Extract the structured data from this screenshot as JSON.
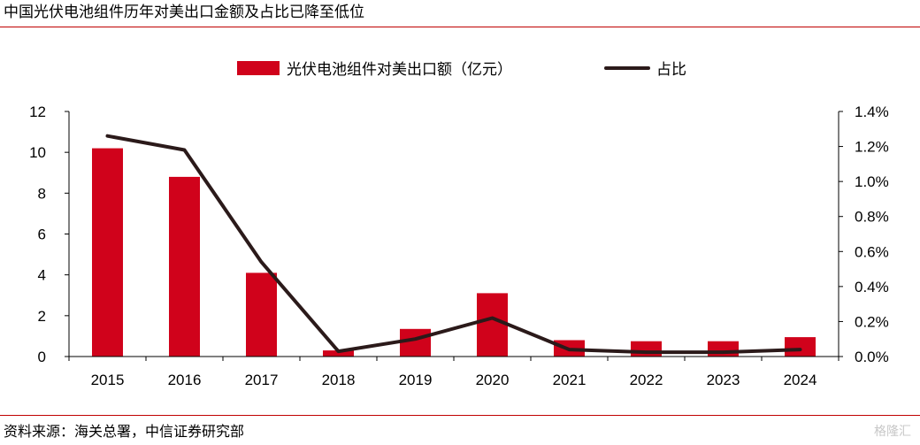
{
  "header": {
    "title": "中国光伏电池组件历年对美出口金额及占比已降至低位"
  },
  "footer": {
    "source": "资料来源：海关总署，中信证券研究部",
    "watermark": "格隆汇"
  },
  "chart_data": {
    "type": "bar",
    "title": "中国光伏电池组件历年对美出口金额及占比已降至低位",
    "categories": [
      "2015",
      "2016",
      "2017",
      "2018",
      "2019",
      "2020",
      "2021",
      "2022",
      "2023",
      "2024"
    ],
    "series": [
      {
        "name": "光伏电池组件对美出口额（亿元）",
        "type": "bar",
        "axis": "left",
        "color": "#d0021b",
        "values": [
          10.2,
          8.8,
          4.1,
          0.3,
          1.35,
          3.1,
          0.8,
          0.75,
          0.75,
          0.95
        ]
      },
      {
        "name": "占比",
        "type": "line",
        "axis": "right",
        "color": "#2b1a1a",
        "values": [
          1.26,
          1.18,
          0.54,
          0.03,
          0.1,
          0.22,
          0.04,
          0.025,
          0.025,
          0.04
        ]
      }
    ],
    "y_left": {
      "min": 0,
      "max": 12,
      "ticks": [
        "0",
        "2",
        "4",
        "6",
        "8",
        "10",
        "12"
      ],
      "tick_values": [
        0,
        2,
        4,
        6,
        8,
        10,
        12
      ]
    },
    "y_right": {
      "min": 0,
      "max": 1.4,
      "unit": "%",
      "ticks": [
        "0.0%",
        "0.2%",
        "0.4%",
        "0.6%",
        "0.8%",
        "1.0%",
        "1.2%",
        "1.4%"
      ],
      "tick_values": [
        0,
        0.2,
        0.4,
        0.6,
        0.8,
        1.0,
        1.2,
        1.4
      ]
    },
    "xlabel": "",
    "ylabel": "",
    "grid": false,
    "legend": {
      "position": "top-center"
    }
  }
}
